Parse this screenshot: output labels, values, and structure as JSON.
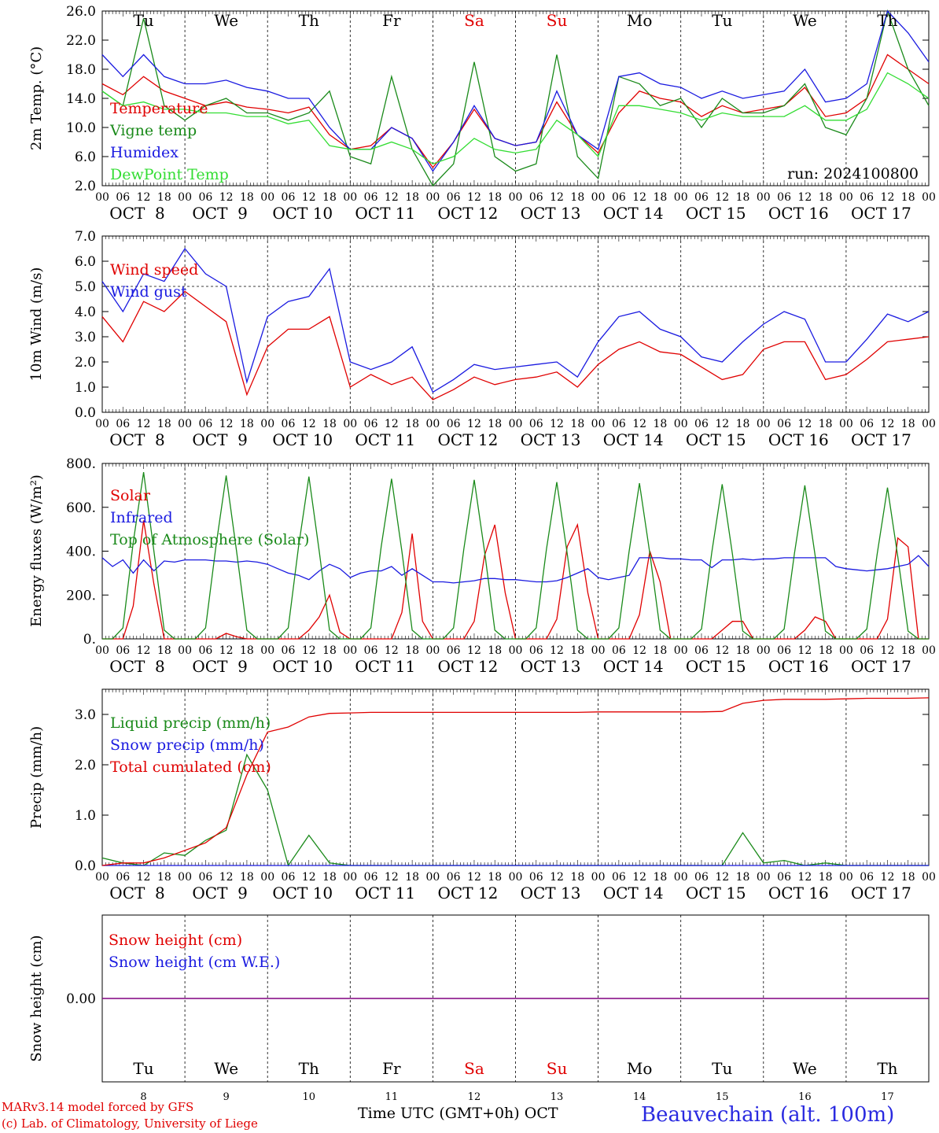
{
  "colors": {
    "red": "#e00000",
    "darkgreen": "#1a8a1a",
    "blue": "#1a1ae0",
    "lightgreen": "#33dd33",
    "purple": "#800080"
  },
  "days": [
    "OCT  8",
    "OCT  9",
    "OCT 10",
    "OCT 11",
    "OCT 12",
    "OCT 13",
    "OCT 14",
    "OCT 15",
    "OCT 16",
    "OCT 17"
  ],
  "weekdays": [
    {
      "label": "Tu",
      "weekend": false
    },
    {
      "label": "We",
      "weekend": false
    },
    {
      "label": "Th",
      "weekend": false
    },
    {
      "label": "Fr",
      "weekend": false
    },
    {
      "label": "Sa",
      "weekend": true
    },
    {
      "label": "Su",
      "weekend": true
    },
    {
      "label": "Mo",
      "weekend": false
    },
    {
      "label": "Tu",
      "weekend": false
    },
    {
      "label": "We",
      "weekend": false
    },
    {
      "label": "Th",
      "weekend": false
    }
  ],
  "hour_ticks": [
    "00",
    "06",
    "12",
    "18"
  ],
  "day_numbers": [
    "8",
    "9",
    "10",
    "11",
    "12",
    "13",
    "14",
    "15",
    "16",
    "17"
  ],
  "footer": {
    "model": "MARv3.14 model forced by GFS",
    "credit": "(c) Lab. of Climatology, University of Liege",
    "time_label": "Time UTC (GMT+0h)",
    "month": "OCT",
    "station": "Beauvechain (alt. 100m)"
  },
  "chart_data": [
    {
      "type": "line",
      "ylabel": "2m Temp. (°C)",
      "ylim": [
        2,
        26
      ],
      "yticks": [
        "2.0",
        "6.0",
        "10.0",
        "14.0",
        "18.0",
        "22.0",
        "26.0"
      ],
      "annotation": "run: 2024100800",
      "x_hours": [
        0,
        6,
        12,
        18,
        24,
        30,
        36,
        42,
        48,
        54,
        60,
        66,
        72,
        78,
        84,
        90,
        96,
        102,
        108,
        114,
        120,
        126,
        132,
        138,
        144,
        150,
        156,
        162,
        168,
        174,
        180,
        186,
        192,
        198,
        204,
        210,
        216,
        222,
        228,
        234,
        240
      ],
      "series": [
        {
          "name": "Temperature",
          "color": "red",
          "values": [
            16,
            14.5,
            17,
            15,
            14,
            13,
            13.5,
            12.8,
            12.5,
            12,
            12.8,
            9,
            7,
            7.5,
            10,
            8.5,
            4.5,
            8,
            12.5,
            8.5,
            7.5,
            8,
            13.5,
            9,
            6.5,
            12,
            15,
            14,
            13.5,
            11.5,
            13,
            12,
            12.5,
            13,
            15.5,
            11.5,
            12,
            14,
            20,
            18,
            16
          ]
        },
        {
          "name": "Vigne temp",
          "color": "darkgreen",
          "values": [
            15,
            13,
            25,
            13,
            11,
            13,
            14,
            12,
            12,
            11,
            12,
            15,
            6,
            5,
            17,
            7,
            1,
            5,
            19,
            6,
            4,
            5,
            20,
            6,
            3,
            17,
            16,
            13,
            14,
            10,
            14,
            12,
            12,
            13,
            16,
            10,
            9,
            14,
            26,
            18,
            13
          ]
        },
        {
          "name": "Humidex",
          "color": "blue",
          "values": [
            20,
            17,
            20,
            17,
            16,
            16,
            16.5,
            15.5,
            15,
            14,
            14,
            10,
            7,
            7,
            10,
            8.5,
            4,
            8,
            13,
            8.5,
            7.5,
            8,
            15,
            9,
            7,
            17,
            17.5,
            16,
            15.5,
            14,
            15,
            14,
            14.5,
            15,
            18,
            13.5,
            14,
            16,
            26,
            23,
            19
          ]
        },
        {
          "name": "DewPoint Temp",
          "color": "lightgreen",
          "values": [
            15,
            13,
            13.5,
            12.5,
            12.5,
            12,
            12,
            11.5,
            11.5,
            10.5,
            11,
            7.5,
            7,
            7,
            8,
            7,
            5,
            6,
            8.5,
            7,
            6.5,
            7,
            11,
            9,
            6,
            13,
            13,
            12.5,
            12,
            11,
            12,
            11.5,
            11.5,
            11.5,
            13,
            11,
            11,
            12.5,
            17.5,
            16,
            14
          ]
        }
      ]
    },
    {
      "type": "line",
      "ylabel": "10m Wind (m/s)",
      "ylim": [
        0,
        7
      ],
      "yticks": [
        "0.0",
        "1.0",
        "2.0",
        "3.0",
        "4.0",
        "5.0",
        "6.0",
        "7.0"
      ],
      "reference_line": 5,
      "x_hours": [
        0,
        6,
        12,
        18,
        24,
        30,
        36,
        42,
        48,
        54,
        60,
        66,
        72,
        78,
        84,
        90,
        96,
        102,
        108,
        114,
        120,
        126,
        132,
        138,
        144,
        150,
        156,
        162,
        168,
        174,
        180,
        186,
        192,
        198,
        204,
        210,
        216,
        222,
        228,
        234,
        240
      ],
      "series": [
        {
          "name": "Wind speed",
          "color": "red",
          "values": [
            3.8,
            2.8,
            4.4,
            4.0,
            4.8,
            4.2,
            3.6,
            0.7,
            2.6,
            3.3,
            3.3,
            3.8,
            1.0,
            1.5,
            1.1,
            1.4,
            0.5,
            0.9,
            1.4,
            1.1,
            1.3,
            1.4,
            1.6,
            1.0,
            1.9,
            2.5,
            2.8,
            2.4,
            2.3,
            1.8,
            1.3,
            1.5,
            2.5,
            2.8,
            2.8,
            1.3,
            1.5,
            2.1,
            2.8,
            2.9,
            3.0
          ]
        },
        {
          "name": "Wind gust",
          "color": "blue",
          "values": [
            5.2,
            4.0,
            5.5,
            5.2,
            6.5,
            5.5,
            5.0,
            1.2,
            3.8,
            4.4,
            4.6,
            5.7,
            2.0,
            1.7,
            2.0,
            2.6,
            0.8,
            1.3,
            1.9,
            1.7,
            1.8,
            1.9,
            2.0,
            1.4,
            2.8,
            3.8,
            4.0,
            3.3,
            3.0,
            2.2,
            2.0,
            2.8,
            3.5,
            4.0,
            3.7,
            2.0,
            2.0,
            2.9,
            3.9,
            3.6,
            4.0
          ]
        }
      ]
    },
    {
      "type": "line",
      "ylabel": "Energy fluxes (W/m²)",
      "ylim": [
        0,
        800
      ],
      "yticks": [
        "0.",
        "200.",
        "400.",
        "600.",
        "800."
      ],
      "x_hours": [
        0,
        3,
        6,
        9,
        12,
        15,
        18,
        21,
        24,
        27,
        30,
        33,
        36,
        39,
        42,
        45,
        48,
        51,
        54,
        57,
        60,
        63,
        66,
        69,
        72,
        75,
        78,
        81,
        84,
        87,
        90,
        93,
        96,
        99,
        102,
        105,
        108,
        111,
        114,
        117,
        120,
        123,
        126,
        129,
        132,
        135,
        138,
        141,
        144,
        147,
        150,
        153,
        156,
        159,
        162,
        165,
        168,
        171,
        174,
        177,
        180,
        183,
        186,
        189,
        192,
        195,
        198,
        201,
        204,
        207,
        210,
        213,
        216,
        219,
        222,
        225,
        228,
        231,
        234,
        237,
        240
      ],
      "series": [
        {
          "name": "Solar",
          "color": "red",
          "values": [
            0,
            0,
            0,
            150,
            540,
            250,
            0,
            0,
            0,
            0,
            0,
            0,
            25,
            10,
            0,
            0,
            0,
            0,
            0,
            0,
            40,
            100,
            200,
            30,
            0,
            0,
            0,
            0,
            0,
            120,
            480,
            80,
            0,
            0,
            0,
            0,
            80,
            380,
            520,
            210,
            0,
            0,
            0,
            0,
            90,
            420,
            520,
            210,
            0,
            0,
            0,
            0,
            110,
            400,
            260,
            0,
            0,
            0,
            0,
            0,
            40,
            80,
            80,
            0,
            0,
            0,
            0,
            0,
            40,
            100,
            80,
            0,
            0,
            0,
            0,
            0,
            90,
            460,
            420,
            0,
            0
          ]
        },
        {
          "name": "Infrared",
          "color": "blue",
          "values": [
            370,
            330,
            360,
            300,
            360,
            310,
            355,
            350,
            360,
            360,
            360,
            355,
            355,
            350,
            355,
            350,
            340,
            320,
            300,
            290,
            270,
            310,
            340,
            320,
            280,
            300,
            310,
            310,
            330,
            290,
            320,
            290,
            260,
            260,
            255,
            260,
            265,
            275,
            275,
            270,
            270,
            265,
            260,
            260,
            265,
            280,
            300,
            320,
            280,
            270,
            280,
            290,
            370,
            370,
            370,
            365,
            365,
            360,
            360,
            325,
            360,
            360,
            365,
            360,
            365,
            365,
            370,
            370,
            370,
            370,
            370,
            330,
            320,
            315,
            310,
            315,
            320,
            330,
            340,
            380,
            330
          ]
        },
        {
          "name": "Top of Atmosphere (Solar)",
          "color": "darkgreen",
          "values": [
            0,
            0,
            50,
            440,
            760,
            400,
            40,
            0,
            0,
            0,
            50,
            420,
            745,
            400,
            40,
            0,
            0,
            0,
            50,
            420,
            740,
            400,
            40,
            0,
            0,
            0,
            50,
            420,
            730,
            400,
            40,
            0,
            0,
            0,
            50,
            410,
            725,
            400,
            40,
            0,
            0,
            0,
            50,
            410,
            715,
            390,
            40,
            0,
            0,
            0,
            50,
            400,
            710,
            390,
            40,
            0,
            0,
            0,
            45,
            395,
            705,
            385,
            35,
            0,
            0,
            0,
            45,
            390,
            700,
            380,
            35,
            0,
            0,
            0,
            45,
            385,
            690,
            375,
            35,
            0,
            0
          ]
        }
      ]
    },
    {
      "type": "line",
      "ylabel": "Precip (mm/h)",
      "ylim": [
        0,
        3.5
      ],
      "yticks": [
        "0.0",
        "1.0",
        "2.0",
        "3.0"
      ],
      "x_hours": [
        0,
        6,
        12,
        18,
        24,
        30,
        36,
        42,
        48,
        54,
        60,
        66,
        72,
        78,
        84,
        90,
        96,
        102,
        108,
        114,
        120,
        126,
        132,
        138,
        144,
        150,
        156,
        162,
        168,
        174,
        180,
        186,
        192,
        198,
        204,
        210,
        216,
        222,
        228,
        234,
        240
      ],
      "series": [
        {
          "name": "Liquid precip (mm/h)",
          "color": "darkgreen",
          "values": [
            0.15,
            0.05,
            0.0,
            0.25,
            0.2,
            0.5,
            0.7,
            2.2,
            1.5,
            0.0,
            0.6,
            0.05,
            0.0,
            0.0,
            0.0,
            0.0,
            0.0,
            0.0,
            0.0,
            0.0,
            0.0,
            0.0,
            0.0,
            0.0,
            0.0,
            0.0,
            0.0,
            0.0,
            0.0,
            0.0,
            0.0,
            0.65,
            0.05,
            0.1,
            0.0,
            0.05,
            0.0,
            0.0,
            0.0,
            0.0,
            0.0
          ]
        },
        {
          "name": "Snow precip (mm/h)",
          "color": "blue",
          "values": [
            0,
            0,
            0,
            0,
            0,
            0,
            0,
            0,
            0,
            0,
            0,
            0,
            0,
            0,
            0,
            0,
            0,
            0,
            0,
            0,
            0,
            0,
            0,
            0,
            0,
            0,
            0,
            0,
            0,
            0,
            0,
            0,
            0,
            0,
            0,
            0,
            0,
            0,
            0,
            0,
            0
          ]
        },
        {
          "name": "Total cumulated (cm)",
          "color": "red",
          "values": [
            0.0,
            0.05,
            0.05,
            0.15,
            0.3,
            0.45,
            0.75,
            1.8,
            2.65,
            2.75,
            2.95,
            3.02,
            3.03,
            3.04,
            3.04,
            3.04,
            3.04,
            3.04,
            3.04,
            3.04,
            3.04,
            3.04,
            3.04,
            3.04,
            3.05,
            3.05,
            3.05,
            3.05,
            3.05,
            3.05,
            3.06,
            3.22,
            3.28,
            3.3,
            3.3,
            3.3,
            3.31,
            3.32,
            3.32,
            3.32,
            3.33
          ]
        }
      ]
    },
    {
      "type": "line",
      "ylabel": "Snow height (cm)",
      "yticks": [
        "0.00"
      ],
      "series": [
        {
          "name": "Snow height (cm)",
          "color": "red",
          "values": [
            0,
            0
          ]
        },
        {
          "name": "Snow height (cm W.E.)",
          "color": "blue",
          "values": [
            0,
            0
          ]
        }
      ]
    }
  ]
}
